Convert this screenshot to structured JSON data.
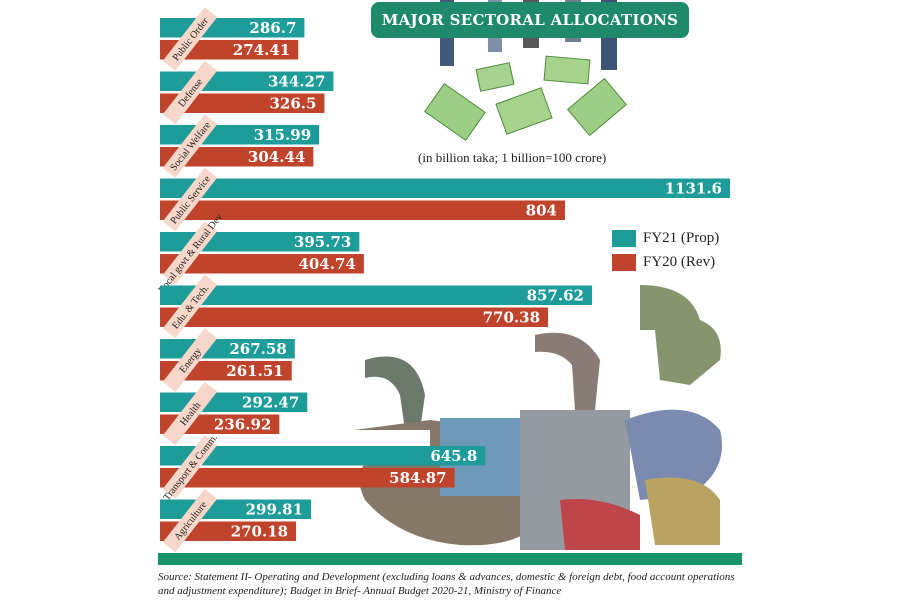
{
  "title": "MAJOR SECTORAL ALLOCATIONS",
  "unit_note": "(in billion taka; 1 billion=100 crore)",
  "source": "Source:  Statement II- Operating and  Development (excluding loans & advances, domestic & foreign debt, food account operations and adjustment expenditure); Budget in Brief- Annual Budget 2020-21, Ministry of Finance",
  "colors": {
    "fy21": "#1e9c9a",
    "fy20": "#c0432b",
    "title_bg": "#1f8a6a",
    "band": "#17936a",
    "label_tag": "#f7d7c9"
  },
  "chart_data": {
    "type": "bar",
    "orientation": "horizontal",
    "title": "MAJOR SECTORAL ALLOCATIONS",
    "subtitle": "(in billion taka; 1 billion=100 crore)",
    "categories": [
      "Public Order",
      "Defense",
      "Social Welfare",
      "Public Service",
      "Local govt & Rural Dev",
      "Edu. & Tech.",
      "Energy",
      "Health",
      "Transport & Comm.",
      "Agriculture"
    ],
    "series": [
      {
        "name": "FY21 (Prop)",
        "values": [
          286.7,
          344.27,
          315.99,
          1131.6,
          395.73,
          857.62,
          267.58,
          292.47,
          645.8,
          299.81
        ]
      },
      {
        "name": "FY20 (Rev)",
        "values": [
          274.41,
          326.5,
          304.44,
          804,
          404.74,
          770.38,
          261.51,
          236.92,
          584.87,
          270.18
        ]
      }
    ],
    "value_labels": [
      [
        "286.7",
        "274.41"
      ],
      [
        "344.27",
        "326.5"
      ],
      [
        "315.99",
        "304.44"
      ],
      [
        "1131.6",
        "804"
      ],
      [
        "395.73",
        "404.74"
      ],
      [
        "857.62",
        "770.38"
      ],
      [
        "267.58",
        "261.51"
      ],
      [
        "292.47",
        "236.92"
      ],
      [
        "645.8",
        "584.87"
      ],
      [
        "299.81",
        "270.18"
      ]
    ],
    "xlim": [
      0,
      1131.6
    ],
    "legend_position": "right",
    "grid": false
  }
}
